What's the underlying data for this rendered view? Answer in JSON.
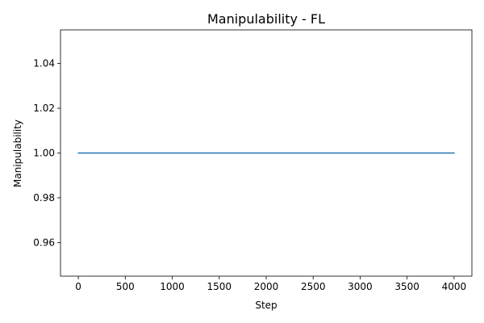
{
  "chart_data": {
    "type": "line",
    "title": "Manipulability - FL",
    "xlabel": "Step",
    "ylabel": "Manipulability",
    "xlim": [
      -190,
      4190
    ],
    "ylim": [
      0.945,
      1.055
    ],
    "xticks": [
      0,
      500,
      1000,
      1500,
      2000,
      2500,
      3000,
      3500,
      4000
    ],
    "xtick_labels": [
      "0",
      "500",
      "1000",
      "1500",
      "2000",
      "2500",
      "3000",
      "3500",
      "4000"
    ],
    "yticks": [
      0.96,
      0.98,
      1.0,
      1.02,
      1.04
    ],
    "ytick_labels": [
      "0.96",
      "0.98",
      "1.00",
      "1.02",
      "1.04"
    ],
    "grid": false,
    "series": [
      {
        "color": "#1f77b4",
        "x": [
          0,
          4000
        ],
        "y": [
          1.0,
          1.0
        ]
      }
    ]
  }
}
